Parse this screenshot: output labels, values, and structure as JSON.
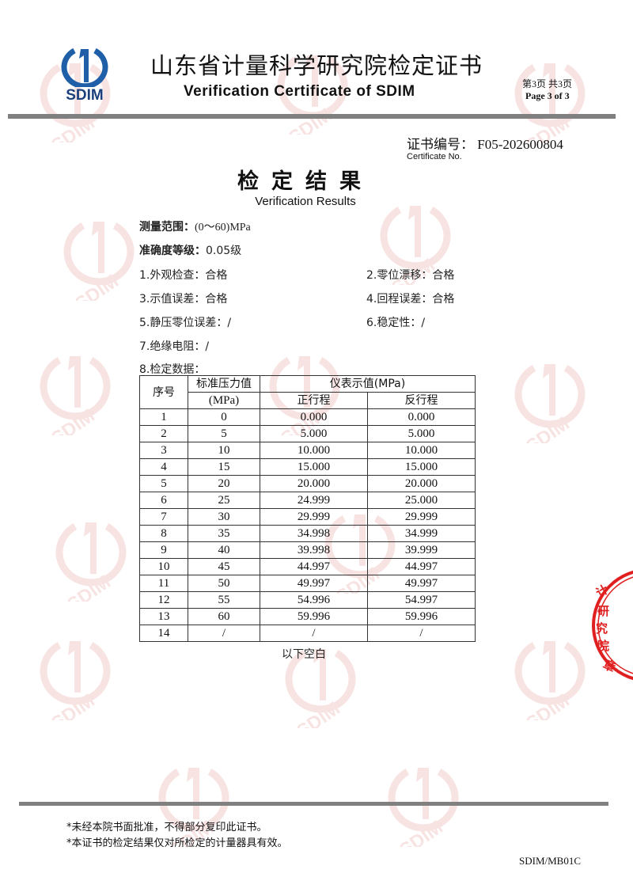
{
  "header": {
    "logo_text": "SDIM",
    "title_cn": "山东省计量科学研究院检定证书",
    "title_en": "Verification Certificate of SDIM",
    "page_cn": "第3页 共3页",
    "page_en": "Page 3 of  3"
  },
  "certificate": {
    "label_cn": "证书编号：",
    "number": "F05-202600804",
    "label_en": "Certificate No."
  },
  "results": {
    "title_cn": "检定结果",
    "title_en": "Verification Results"
  },
  "specs": {
    "range_label": "测量范围：",
    "range_value": "(0～60)MPa",
    "accuracy_label": "准确度等级：",
    "accuracy_value": "0.05级"
  },
  "checks": [
    "1.外观检查：合格",
    "2.零位漂移：合格",
    "3.示值误差：合格",
    "4.回程误差：合格",
    "5.静压零位误差：/",
    "6.稳定性：/",
    "7.绝缘电阻：/"
  ],
  "data_label": "8.检定数据：",
  "table": {
    "col_index": "序号",
    "col_standard": "标准压力值",
    "col_standard_unit": "(MPa)",
    "col_reading": "仪表示值(MPa)",
    "col_up": "正行程",
    "col_down": "反行程",
    "rows": [
      [
        "1",
        "0",
        "0.000",
        "0.000"
      ],
      [
        "2",
        "5",
        "5.000",
        "5.000"
      ],
      [
        "3",
        "10",
        "10.000",
        "10.000"
      ],
      [
        "4",
        "15",
        "15.000",
        "15.000"
      ],
      [
        "5",
        "20",
        "20.000",
        "20.000"
      ],
      [
        "6",
        "25",
        "24.999",
        "25.000"
      ],
      [
        "7",
        "30",
        "29.999",
        "29.999"
      ],
      [
        "8",
        "35",
        "34.998",
        "34.999"
      ],
      [
        "9",
        "40",
        "39.998",
        "39.999"
      ],
      [
        "10",
        "45",
        "44.997",
        "44.997"
      ],
      [
        "11",
        "50",
        "49.997",
        "49.997"
      ],
      [
        "12",
        "55",
        "54.996",
        "54.997"
      ],
      [
        "13",
        "60",
        "59.996",
        "59.996"
      ],
      [
        "14",
        "/",
        "/",
        "/"
      ]
    ]
  },
  "blank_note": "以下空白",
  "footer": {
    "notes": [
      "*未经本院书面批准，不得部分复印此证书。",
      "*本证书的检定结果仅对所检定的计量器具有效。"
    ],
    "code": "SDIM/MB01C"
  },
  "stamp": {
    "text": "计量科学研究院检定专用章",
    "color": "#e02020"
  },
  "colors": {
    "logo_blue": "#1f5fa8",
    "watermark": "#e08080",
    "rule": "#808080"
  }
}
